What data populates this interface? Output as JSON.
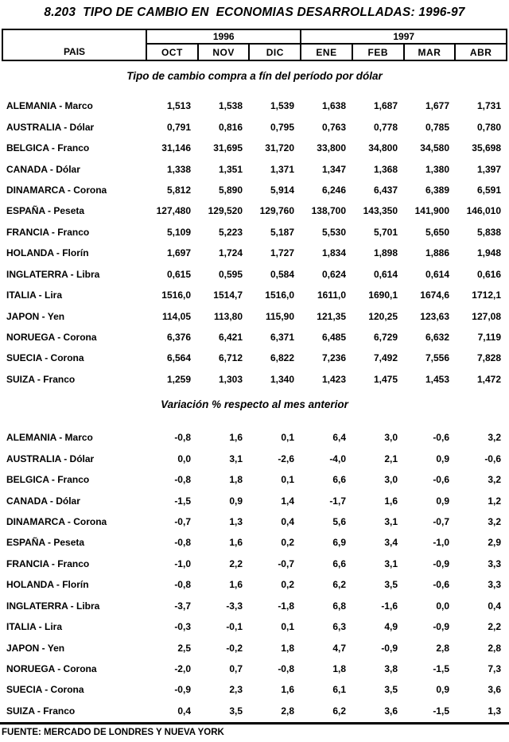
{
  "title": "8.203  TIPO DE CAMBIO EN  ECONOMIAS DESARROLLADAS: 1996-97",
  "header": {
    "country_col": "PAIS",
    "year_groups": [
      {
        "year": "1996",
        "months": [
          "OCT",
          "NOV",
          "DIC"
        ]
      },
      {
        "year": "1997",
        "months": [
          "ENE",
          "FEB",
          "MAR",
          "ABR"
        ]
      }
    ]
  },
  "sections": [
    {
      "title": "Tipo de cambio compra a fín del período por dólar",
      "rows": [
        {
          "country": "ALEMANIA - Marco",
          "values": [
            "1,513",
            "1,538",
            "1,539",
            "1,638",
            "1,687",
            "1,677",
            "1,731"
          ]
        },
        {
          "country": "AUSTRALIA - Dólar",
          "values": [
            "0,791",
            "0,816",
            "0,795",
            "0,763",
            "0,778",
            "0,785",
            "0,780"
          ]
        },
        {
          "country": "BELGICA - Franco",
          "values": [
            "31,146",
            "31,695",
            "31,720",
            "33,800",
            "34,800",
            "34,580",
            "35,698"
          ]
        },
        {
          "country": "CANADA - Dólar",
          "values": [
            "1,338",
            "1,351",
            "1,371",
            "1,347",
            "1,368",
            "1,380",
            "1,397"
          ]
        },
        {
          "country": "DINAMARCA - Corona",
          "values": [
            "5,812",
            "5,890",
            "5,914",
            "6,246",
            "6,437",
            "6,389",
            "6,591"
          ]
        },
        {
          "country": "ESPAÑA - Peseta",
          "values": [
            "127,480",
            "129,520",
            "129,760",
            "138,700",
            "143,350",
            "141,900",
            "146,010"
          ]
        },
        {
          "country": "FRANCIA - Franco",
          "values": [
            "5,109",
            "5,223",
            "5,187",
            "5,530",
            "5,701",
            "5,650",
            "5,838"
          ]
        },
        {
          "country": "HOLANDA - Florín",
          "values": [
            "1,697",
            "1,724",
            "1,727",
            "1,834",
            "1,898",
            "1,886",
            "1,948"
          ]
        },
        {
          "country": "INGLATERRA - Libra",
          "values": [
            "0,615",
            "0,595",
            "0,584",
            "0,624",
            "0,614",
            "0,614",
            "0,616"
          ]
        },
        {
          "country": "ITALIA - Lira",
          "values": [
            "1516,0",
            "1514,7",
            "1516,0",
            "1611,0",
            "1690,1",
            "1674,6",
            "1712,1"
          ]
        },
        {
          "country": "JAPON - Yen",
          "values": [
            "114,05",
            "113,80",
            "115,90",
            "121,35",
            "120,25",
            "123,63",
            "127,08"
          ]
        },
        {
          "country": "NORUEGA - Corona",
          "values": [
            "6,376",
            "6,421",
            "6,371",
            "6,485",
            "6,729",
            "6,632",
            "7,119"
          ]
        },
        {
          "country": "SUECIA - Corona",
          "values": [
            "6,564",
            "6,712",
            "6,822",
            "7,236",
            "7,492",
            "7,556",
            "7,828"
          ]
        },
        {
          "country": "SUIZA - Franco",
          "values": [
            "1,259",
            "1,303",
            "1,340",
            "1,423",
            "1,475",
            "1,453",
            "1,472"
          ]
        }
      ]
    },
    {
      "title": "Variación % respecto al mes anterior",
      "rows": [
        {
          "country": "ALEMANIA - Marco",
          "values": [
            "-0,8",
            "1,6",
            "0,1",
            "6,4",
            "3,0",
            "-0,6",
            "3,2"
          ]
        },
        {
          "country": "AUSTRALIA - Dólar",
          "values": [
            "0,0",
            "3,1",
            "-2,6",
            "-4,0",
            "2,1",
            "0,9",
            "-0,6"
          ]
        },
        {
          "country": "BELGICA - Franco",
          "values": [
            "-0,8",
            "1,8",
            "0,1",
            "6,6",
            "3,0",
            "-0,6",
            "3,2"
          ]
        },
        {
          "country": "CANADA - Dólar",
          "values": [
            "-1,5",
            "0,9",
            "1,4",
            "-1,7",
            "1,6",
            "0,9",
            "1,2"
          ]
        },
        {
          "country": "DINAMARCA - Corona",
          "values": [
            "-0,7",
            "1,3",
            "0,4",
            "5,6",
            "3,1",
            "-0,7",
            "3,2"
          ]
        },
        {
          "country": "ESPAÑA - Peseta",
          "values": [
            "-0,8",
            "1,6",
            "0,2",
            "6,9",
            "3,4",
            "-1,0",
            "2,9"
          ]
        },
        {
          "country": "FRANCIA - Franco",
          "values": [
            "-1,0",
            "2,2",
            "-0,7",
            "6,6",
            "3,1",
            "-0,9",
            "3,3"
          ]
        },
        {
          "country": "HOLANDA - Florín",
          "values": [
            "-0,8",
            "1,6",
            "0,2",
            "6,2",
            "3,5",
            "-0,6",
            "3,3"
          ]
        },
        {
          "country": "INGLATERRA - Libra",
          "values": [
            "-3,7",
            "-3,3",
            "-1,8",
            "6,8",
            "-1,6",
            "0,0",
            "0,4"
          ]
        },
        {
          "country": "ITALIA - Lira",
          "values": [
            "-0,3",
            "-0,1",
            "0,1",
            "6,3",
            "4,9",
            "-0,9",
            "2,2"
          ]
        },
        {
          "country": "JAPON - Yen",
          "values": [
            "2,5",
            "-0,2",
            "1,8",
            "4,7",
            "-0,9",
            "2,8",
            "2,8"
          ]
        },
        {
          "country": "NORUEGA - Corona",
          "values": [
            "-2,0",
            "0,7",
            "-0,8",
            "1,8",
            "3,8",
            "-1,5",
            "7,3"
          ]
        },
        {
          "country": "SUECIA - Corona",
          "values": [
            "-0,9",
            "2,3",
            "1,6",
            "6,1",
            "3,5",
            "0,9",
            "3,6"
          ]
        },
        {
          "country": "SUIZA - Franco",
          "values": [
            "0,4",
            "3,5",
            "2,8",
            "6,2",
            "3,6",
            "-1,5",
            "1,3"
          ]
        }
      ]
    }
  ],
  "footer": "FUENTE: MERCADO DE LONDRES Y NUEVA YORK",
  "colors": {
    "text": "#000000",
    "background": "#ffffff",
    "border": "#000000"
  }
}
